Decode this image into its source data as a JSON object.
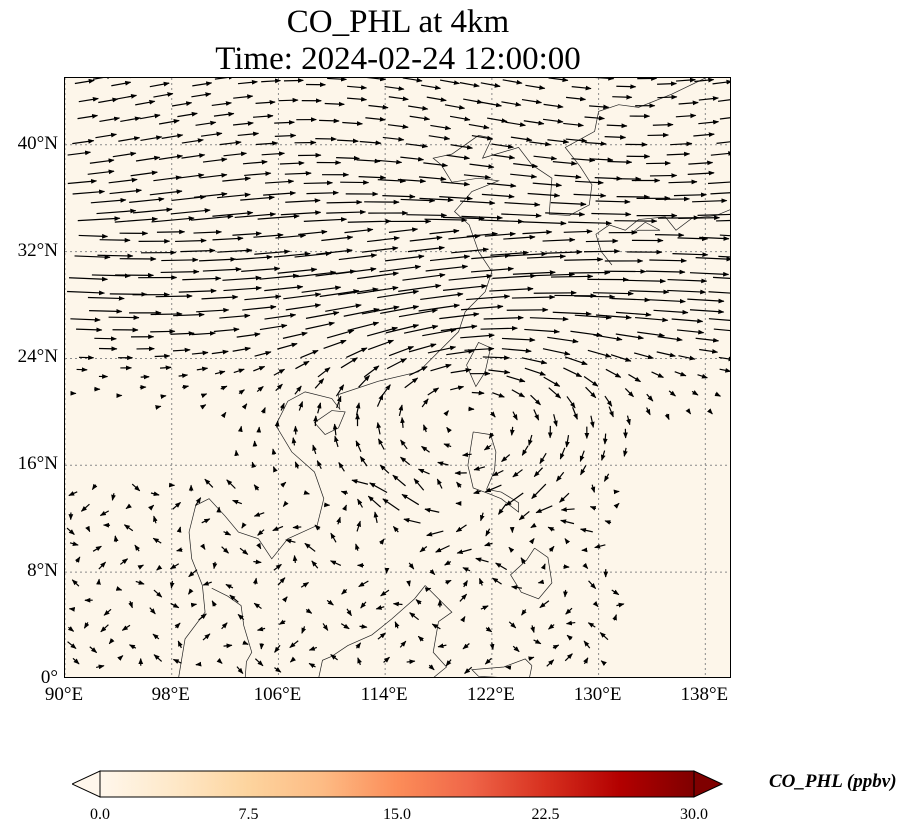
{
  "title": {
    "line1": "CO_PHL at 4km",
    "line2": "Time: 2024-02-24 12:00:00"
  },
  "map": {
    "lon_range": [
      90,
      140
    ],
    "lat_range": [
      0,
      45
    ],
    "lon_ticks": [
      "90°E",
      "98°E",
      "106°E",
      "114°E",
      "122°E",
      "130°E",
      "138°E"
    ],
    "lon_tick_values": [
      90,
      98,
      106,
      114,
      122,
      130,
      138
    ],
    "lat_ticks": [
      "0°",
      "8°N",
      "16°N",
      "24°N",
      "32°N",
      "40°N"
    ],
    "lat_tick_values": [
      0,
      8,
      16,
      24,
      32,
      40
    ],
    "gridlines": true,
    "field": "CO_PHL",
    "field_background_color": "#fdf6ea",
    "vectors": "wind",
    "wind_pattern": "strong westerly jet near 24-34°N; anticyclonic circulation centered near 19°N 120°E; light variable winds south of 15°N"
  },
  "colorbar": {
    "label": "CO_PHL (ppbv)",
    "ticks": [
      "0.0",
      "7.5",
      "15.0",
      "22.5",
      "30.0"
    ],
    "tick_values": [
      0,
      7.5,
      15,
      22.5,
      30
    ],
    "range": [
      0,
      30
    ],
    "colormap": "OrRd",
    "colors": [
      "#fff7ec",
      "#fee8c8",
      "#fdd49e",
      "#fdbb84",
      "#fc8d59",
      "#ef6548",
      "#d7301f",
      "#b30000",
      "#7f0000"
    ],
    "extend": "both"
  }
}
